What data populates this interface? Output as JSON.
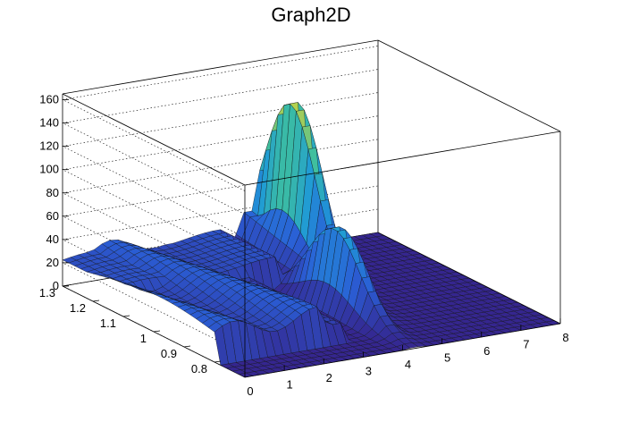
{
  "chart_data": {
    "type": "surface",
    "title": "Graph2D",
    "xlabel": "",
    "ylabel": "",
    "zlabel": "",
    "x_range": [
      0,
      8
    ],
    "y_range": [
      0.7,
      1.3
    ],
    "z_range": [
      0,
      165
    ],
    "x_ticks": [
      "0",
      "1",
      "2",
      "3",
      "4",
      "5",
      "6",
      "7",
      "8"
    ],
    "y_ticks": [
      "0.8",
      "0.9",
      "1",
      "1.1",
      "1.2",
      "1.3"
    ],
    "z_ticks": [
      "0",
      "20",
      "40",
      "60",
      "80",
      "100",
      "120",
      "140",
      "160"
    ],
    "grid": "z-dotted",
    "colormap": [
      "#35268f",
      "#2a5fd6",
      "#1f9ad6",
      "#3dbfa0",
      "#a0cc5c",
      "#f5e61e"
    ],
    "peaks": [
      {
        "x": 5.1,
        "y": 1.2,
        "z": 160
      },
      {
        "x": 4.3,
        "y": 0.95,
        "z": 80
      }
    ],
    "plateau_level": 25
  }
}
